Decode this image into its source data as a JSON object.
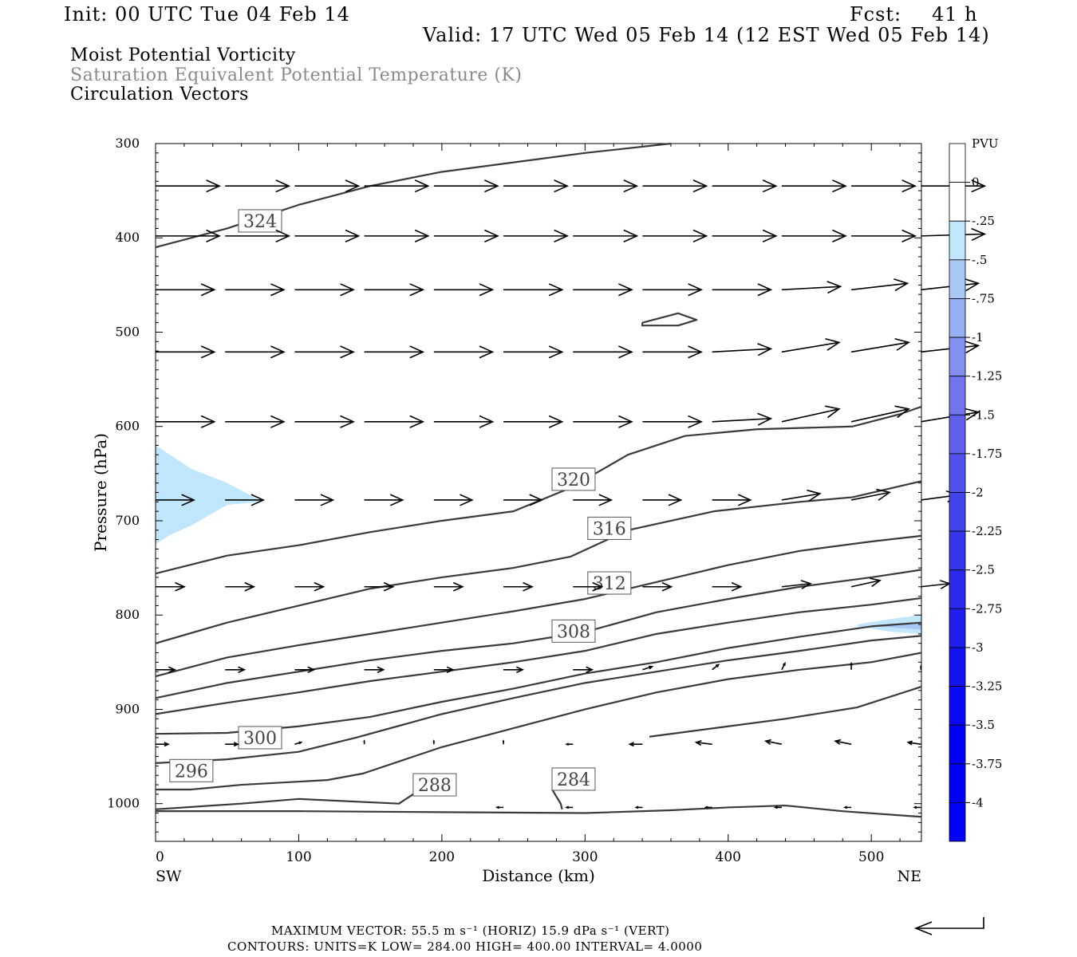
{
  "header": {
    "init": "Init: 00 UTC Tue 04 Feb 14",
    "fcst_label": "Fcst:",
    "fcst_value": "41 h",
    "valid": "Valid: 17 UTC Wed 05 Feb 14 (12 EST Wed 05 Feb 14)",
    "field1": "Moist Potential Vorticity",
    "field2": "Saturation Equivalent Potential Temperature (K)",
    "field3": "Circulation Vectors"
  },
  "colors": {
    "field2_text": "#8a8a8a",
    "contour": "#3a3a3a",
    "pv_shading": [
      "#bfe6fb",
      "#a9c8f6",
      "#96aef2",
      "#8490ef",
      "#7274ed",
      "#6160ec",
      "#5152ec",
      "#4244ec",
      "#3636ed",
      "#2a2aee",
      "#1f1ff0",
      "#1414f2",
      "#0a0af4",
      "#0000f6",
      "#0000f8",
      "#0000fa"
    ]
  },
  "footer": {
    "max_vector": "MAXIMUM VECTOR:  55.5 m s⁻¹ (HORIZ)          15.9 dPa s⁻¹ (VERT)",
    "contours": "CONTOURS:  UNITS=K  LOW=  284.00        HIGH=  400.00        INTERVAL=     4.0000"
  },
  "chart_data": {
    "type": "cross-section",
    "xlabel": "Distance (km)",
    "ylabel": "Pressure (hPa)",
    "xlim": [
      0,
      535
    ],
    "ylim": [
      300,
      1040
    ],
    "y_log": false,
    "xticks": [
      0,
      100,
      200,
      300,
      400,
      500
    ],
    "yticks": [
      300,
      400,
      500,
      600,
      700,
      800,
      900,
      1000
    ],
    "x_end_labels": {
      "left": "SW",
      "right": "NE"
    },
    "colorbar": {
      "units": "PVU",
      "labels": [
        "0",
        "-.25",
        "-.5",
        "-.75",
        "-1",
        "-1.25",
        "-1.5",
        "-1.75",
        "-2",
        "-2.25",
        "-2.5",
        "-2.75",
        "-3",
        "-3.25",
        "-3.5",
        "-3.75",
        "-4"
      ]
    },
    "contour_interval": 4,
    "theta_es_contours": [
      {
        "label": "324",
        "label_at": [
          73,
          382
        ],
        "points": [
          [
            0,
            410
          ],
          [
            50,
            390
          ],
          [
            100,
            365
          ],
          [
            150,
            345
          ],
          [
            200,
            330
          ],
          [
            250,
            320
          ],
          [
            300,
            310
          ],
          [
            360,
            300
          ]
        ]
      },
      {
        "label": "",
        "label_at": null,
        "points": [
          [
            340,
            490
          ],
          [
            365,
            480
          ],
          [
            378,
            487
          ],
          [
            365,
            493
          ],
          [
            340,
            493
          ],
          [
            340,
            490
          ]
        ]
      },
      {
        "label": "320",
        "label_at": [
          292,
          656
        ],
        "points": [
          [
            0,
            756
          ],
          [
            50,
            737
          ],
          [
            100,
            726
          ],
          [
            150,
            712
          ],
          [
            200,
            700
          ],
          [
            250,
            690
          ],
          [
            290,
            665
          ],
          [
            330,
            630
          ],
          [
            370,
            610
          ],
          [
            420,
            603
          ],
          [
            487,
            600
          ],
          [
            520,
            587
          ],
          [
            535,
            579
          ]
        ]
      },
      {
        "label": "316",
        "label_at": [
          317,
          708
        ],
        "points": [
          [
            0,
            830
          ],
          [
            50,
            808
          ],
          [
            100,
            790
          ],
          [
            150,
            772
          ],
          [
            200,
            760
          ],
          [
            250,
            750
          ],
          [
            290,
            738
          ],
          [
            330,
            710
          ],
          [
            390,
            690
          ],
          [
            450,
            680
          ],
          [
            487,
            675
          ],
          [
            535,
            658
          ]
        ]
      },
      {
        "label": "312",
        "label_at": [
          317,
          766
        ],
        "points": [
          [
            0,
            865
          ],
          [
            50,
            845
          ],
          [
            100,
            832
          ],
          [
            150,
            820
          ],
          [
            200,
            808
          ],
          [
            250,
            796
          ],
          [
            300,
            783
          ],
          [
            350,
            765
          ],
          [
            400,
            747
          ],
          [
            450,
            732
          ],
          [
            500,
            722
          ],
          [
            535,
            716
          ]
        ]
      },
      {
        "label": "308",
        "label_at": [
          292,
          817
        ],
        "points": [
          [
            0,
            888
          ],
          [
            50,
            872
          ],
          [
            100,
            860
          ],
          [
            150,
            848
          ],
          [
            200,
            838
          ],
          [
            250,
            830
          ],
          [
            300,
            818
          ],
          [
            350,
            797
          ],
          [
            400,
            783
          ],
          [
            450,
            770
          ],
          [
            500,
            760
          ],
          [
            535,
            752
          ]
        ]
      },
      {
        "label": "",
        "label_at": null,
        "points": [
          [
            0,
            905
          ],
          [
            50,
            893
          ],
          [
            100,
            882
          ],
          [
            150,
            870
          ],
          [
            200,
            860
          ],
          [
            250,
            850
          ],
          [
            300,
            838
          ],
          [
            350,
            820
          ],
          [
            400,
            808
          ],
          [
            450,
            797
          ],
          [
            500,
            789
          ],
          [
            535,
            782
          ]
        ]
      },
      {
        "label": "300",
        "label_at": [
          73,
          930
        ],
        "points": [
          [
            0,
            926
          ],
          [
            50,
            925
          ],
          [
            100,
            918
          ],
          [
            150,
            908
          ],
          [
            200,
            892
          ],
          [
            250,
            878
          ],
          [
            300,
            862
          ],
          [
            350,
            850
          ],
          [
            400,
            835
          ],
          [
            450,
            823
          ],
          [
            500,
            812
          ],
          [
            535,
            808
          ]
        ]
      },
      {
        "label": "296",
        "label_at": [
          25,
          965
        ],
        "points": [
          [
            0,
            957
          ],
          [
            50,
            953
          ],
          [
            100,
            945
          ],
          [
            140,
            930
          ],
          [
            200,
            905
          ],
          [
            250,
            888
          ],
          [
            300,
            872
          ],
          [
            350,
            860
          ],
          [
            400,
            848
          ],
          [
            450,
            838
          ],
          [
            500,
            827
          ],
          [
            535,
            822
          ]
        ]
      },
      {
        "label": "",
        "label_at": null,
        "points": [
          [
            0,
            985
          ],
          [
            25,
            985
          ],
          [
            60,
            980
          ],
          [
            120,
            975
          ],
          [
            145,
            968
          ],
          [
            200,
            940
          ],
          [
            250,
            920
          ],
          [
            300,
            900
          ],
          [
            350,
            882
          ],
          [
            400,
            868
          ],
          [
            450,
            858
          ],
          [
            500,
            850
          ],
          [
            535,
            840
          ]
        ]
      },
      {
        "label": "288",
        "label_at": [
          195,
          980
        ],
        "points": [
          [
            0,
            1006
          ],
          [
            60,
            1000
          ],
          [
            100,
            995
          ],
          [
            170,
            1000
          ],
          [
            185,
            985
          ]
        ]
      },
      {
        "label": "284",
        "label_at": [
          292,
          974
        ],
        "points": [
          [
            0,
            1008
          ],
          [
            100,
            1008
          ],
          [
            200,
            1009
          ],
          [
            300,
            1010
          ],
          [
            360,
            1007
          ],
          [
            400,
            1004
          ],
          [
            440,
            1002
          ],
          [
            480,
            1008
          ],
          [
            535,
            1014
          ]
        ]
      },
      {
        "label": "",
        "label_at": null,
        "points": [
          [
            277,
            985
          ],
          [
            283,
            1000
          ],
          [
            284,
            1006
          ]
        ]
      },
      {
        "label": "",
        "label_at": null,
        "points": [
          [
            345,
            929
          ],
          [
            390,
            920
          ],
          [
            440,
            910
          ],
          [
            490,
            898
          ],
          [
            535,
            876
          ]
        ]
      }
    ],
    "pv_regions": [
      {
        "pv_max": -0.25,
        "points": [
          [
            0,
            620
          ],
          [
            10,
            630
          ],
          [
            25,
            645
          ],
          [
            50,
            660
          ],
          [
            75,
            680
          ],
          [
            50,
            683
          ],
          [
            25,
            705
          ],
          [
            10,
            715
          ],
          [
            0,
            725
          ]
        ]
      },
      {
        "pv_max": -0.25,
        "points": [
          [
            490,
            810
          ],
          [
            510,
            805
          ],
          [
            535,
            800
          ],
          [
            535,
            820
          ],
          [
            515,
            818
          ],
          [
            490,
            812
          ]
        ]
      },
      {
        "pv_max": -0.5,
        "points": [
          [
            505,
            812
          ],
          [
            520,
            810
          ],
          [
            535,
            807
          ],
          [
            535,
            815
          ],
          [
            520,
            814
          ]
        ]
      }
    ],
    "circulation_vectors": {
      "x_stride_km": 48.6,
      "x_start_km": 0,
      "unit": "display length relative to reference vector",
      "rows": [
        {
          "p": 345,
          "u": [
            1,
            1,
            1,
            1,
            1,
            1,
            1,
            1,
            1,
            1,
            1,
            1
          ],
          "v": [
            0,
            0,
            0,
            0,
            0,
            0,
            0,
            0,
            0,
            0,
            0,
            0
          ]
        },
        {
          "p": 398,
          "u": [
            1,
            1,
            1,
            1,
            1,
            1,
            1,
            1,
            1,
            1,
            1,
            1
          ],
          "v": [
            0,
            0,
            0,
            0,
            0,
            0,
            0,
            0,
            0,
            0,
            0,
            0.03
          ]
        },
        {
          "p": 455,
          "u": [
            0.92,
            0.92,
            0.92,
            0.92,
            0.92,
            0.92,
            0.92,
            0.92,
            0.92,
            0.92,
            0.88,
            0.9
          ],
          "v": [
            0,
            0,
            0,
            0,
            0,
            0,
            0,
            0,
            0,
            0.05,
            0.1,
            0.1
          ]
        },
        {
          "p": 521,
          "u": [
            0.92,
            0.92,
            0.92,
            0.92,
            0.92,
            0.92,
            0.92,
            0.92,
            0.92,
            0.9,
            0.9,
            0.9
          ],
          "v": [
            0,
            0,
            0,
            0,
            0,
            0,
            0,
            0,
            0.05,
            0.15,
            0.15,
            0.1
          ]
        },
        {
          "p": 595,
          "u": [
            0.92,
            0.92,
            0.92,
            0.92,
            0.92,
            0.92,
            0.92,
            0.92,
            0.92,
            0.9,
            0.9,
            0.9
          ],
          "v": [
            0,
            0,
            0,
            0,
            0,
            0,
            0,
            0,
            0.05,
            0.2,
            0.2,
            0.15
          ]
        },
        {
          "p": 678,
          "u": [
            0.6,
            0.6,
            0.6,
            0.6,
            0.6,
            0.6,
            0.6,
            0.6,
            0.6,
            0.6,
            0.6,
            0.6
          ],
          "v": [
            0,
            0,
            0,
            0,
            0,
            0,
            0,
            0,
            0,
            0.1,
            0.12,
            0.08
          ]
        },
        {
          "p": 770,
          "u": [
            0.45,
            0.45,
            0.45,
            0.45,
            0.45,
            0.45,
            0.45,
            0.45,
            0.45,
            0.45,
            0.45,
            0.45
          ],
          "v": [
            0,
            0,
            0,
            0,
            0,
            0,
            0,
            0,
            0,
            0.05,
            0.1,
            0.05
          ]
        },
        {
          "p": 858,
          "u": [
            0.3,
            0.3,
            0.3,
            0.3,
            0.3,
            0.3,
            0.3,
            0.15,
            0.1,
            0.05,
            0,
            0
          ],
          "v": [
            0,
            0,
            0,
            0,
            0,
            0,
            0,
            0.05,
            0.08,
            0.1,
            0.1,
            0.05
          ]
        },
        {
          "p": 937,
          "u": [
            0.2,
            0.2,
            0.1,
            0,
            0,
            0,
            -0.1,
            -0.2,
            -0.25,
            -0.25,
            -0.25,
            -0.2
          ],
          "v": [
            0,
            0,
            0.03,
            0.05,
            0.05,
            0.05,
            0,
            0,
            0.03,
            0.05,
            0.05,
            0.03
          ]
        },
        {
          "p": 1004,
          "u": [
            0,
            0,
            0,
            0,
            0,
            -0.1,
            -0.1,
            -0.1,
            -0.1,
            -0.1,
            -0.1,
            -0.1
          ],
          "v": [
            0,
            0,
            0,
            0,
            0,
            0,
            0,
            0,
            0,
            0,
            0,
            0
          ]
        }
      ]
    },
    "reference_vector": "MAXIMUM VECTOR: 55.5 m s⁻¹ (HORIZ) / 15.9 dPa s⁻¹ (VERT)"
  }
}
